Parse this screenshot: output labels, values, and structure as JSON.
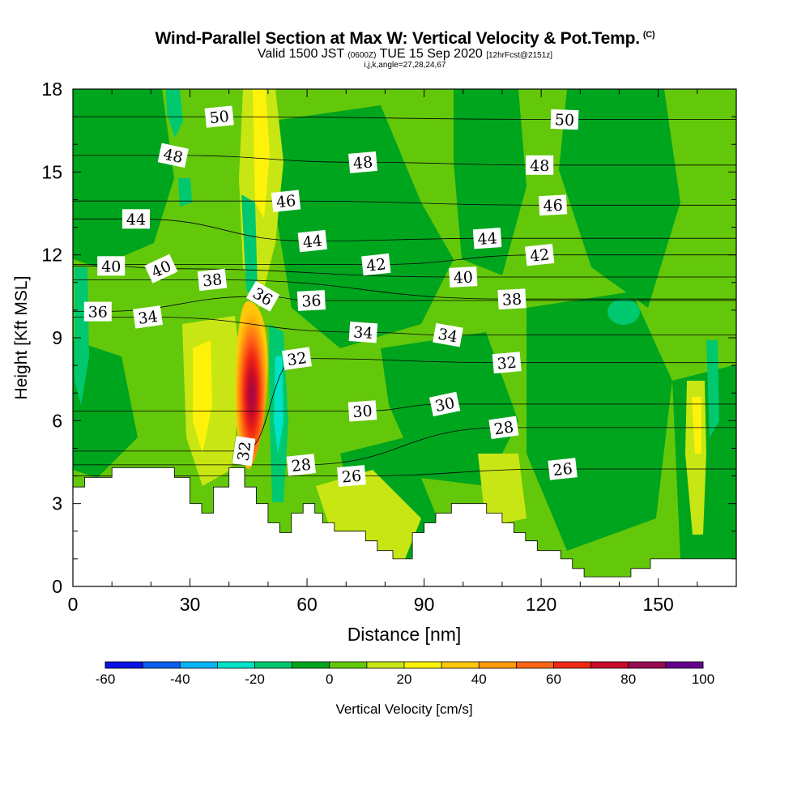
{
  "header": {
    "title": "Wind-Parallel Section at Max W: Vertical Velocity & Pot.Temp.",
    "title_unit": "(C)",
    "valid_prefix": "Valid 1500 JST",
    "valid_zulu": "(0600Z)",
    "valid_suffix": "TUE 15 Sep 2020",
    "forecast": "[12hrFcst@2151z]",
    "grid_info": "i,j,k,angle=27,28,24,67"
  },
  "chart_data": {
    "type": "heatmap",
    "xlabel": "Distance [nm]",
    "ylabel": "Height [Kft MSL]",
    "xlim": [
      0,
      170
    ],
    "ylim": [
      0,
      18
    ],
    "x_ticks": [
      0,
      30,
      60,
      90,
      120,
      150
    ],
    "y_ticks": [
      0,
      3,
      6,
      9,
      12,
      15,
      18
    ],
    "colorbar": {
      "label": "Vertical Velocity [cm/s]",
      "levels": [
        -60,
        -50,
        -40,
        -30,
        -20,
        -10,
        0,
        10,
        20,
        30,
        40,
        50,
        60,
        70,
        80,
        90,
        100
      ],
      "tick_labels": [
        "-60",
        "-40",
        "-20",
        "0",
        "20",
        "40",
        "60",
        "80",
        "100"
      ],
      "colors": [
        "#0a10e6",
        "#0a5ff0",
        "#0ab4f5",
        "#00e3c8",
        "#00c86e",
        "#00a51e",
        "#64c80a",
        "#c8e614",
        "#fff20a",
        "#ffc80a",
        "#ff9b0a",
        "#ff6414",
        "#f02814",
        "#c80a28",
        "#960a50",
        "#64008c"
      ]
    },
    "background_level": "0 to 10",
    "features": [
      {
        "name": "updraft core",
        "x": 45,
        "y_range": [
          4,
          9.5
        ],
        "max_level": "70 to 80"
      },
      {
        "name": "updraft plume",
        "x_range": [
          43,
          52
        ],
        "y_range": [
          9,
          18
        ],
        "level": "20 to 30"
      },
      {
        "name": "downdraft band",
        "x_range": [
          49,
          53
        ],
        "y_range": [
          3,
          9
        ],
        "level": "-20 to -10"
      },
      {
        "name": "updraft",
        "x_range": [
          32,
          40
        ],
        "y_range": [
          3,
          9
        ],
        "level": "20 to 30"
      },
      {
        "name": "updraft",
        "x": 161,
        "y_range": [
          2,
          8
        ],
        "level": "20 to 30"
      }
    ],
    "terrain": {
      "description": "stepped terrain mask (white)",
      "x": [
        0,
        3,
        3,
        10,
        10,
        26,
        26,
        30,
        30,
        33,
        33,
        36,
        36,
        40,
        40,
        44,
        44,
        47,
        47,
        50,
        50,
        53,
        53,
        56,
        56,
        59,
        59,
        62,
        62,
        64,
        64,
        67,
        67,
        75,
        75,
        78,
        78,
        82,
        82,
        87,
        87,
        90,
        90,
        93,
        93,
        97,
        97,
        106,
        106,
        110,
        110,
        113,
        113,
        116,
        116,
        119,
        119,
        125,
        125,
        128,
        128,
        131,
        131,
        143,
        143,
        148,
        148,
        170
      ],
      "kft": [
        3.6,
        3.6,
        3.95,
        3.95,
        4.3,
        4.3,
        3.95,
        3.95,
        3.0,
        3.0,
        2.65,
        2.65,
        3.6,
        3.6,
        4.3,
        4.3,
        3.6,
        3.6,
        3.0,
        3.0,
        2.3,
        2.3,
        1.95,
        1.95,
        2.65,
        2.65,
        3.0,
        3.0,
        2.65,
        2.65,
        2.3,
        2.3,
        2.0,
        2.0,
        1.65,
        1.65,
        1.3,
        1.3,
        1.0,
        1.0,
        1.95,
        1.95,
        2.3,
        2.3,
        2.65,
        2.65,
        3.0,
        3.0,
        2.65,
        2.65,
        2.3,
        2.3,
        1.95,
        1.95,
        1.65,
        1.65,
        1.3,
        1.3,
        1.0,
        1.0,
        0.65,
        0.65,
        0.35,
        0.35,
        0.65,
        0.65,
        1.0,
        1.0
      ]
    },
    "contour_labels": [
      {
        "text": "50",
        "x": 37.5,
        "y": 17.0,
        "angle": -6
      },
      {
        "text": "50",
        "x": 126,
        "y": 16.9,
        "angle": 2
      },
      {
        "text": "48",
        "x": 25.7,
        "y": 15.6,
        "angle": 12
      },
      {
        "text": "48",
        "x": 74.3,
        "y": 15.35,
        "angle": -5
      },
      {
        "text": "48",
        "x": 119.6,
        "y": 15.25,
        "angle": 0
      },
      {
        "text": "46",
        "x": 54.6,
        "y": 13.95,
        "angle": -6
      },
      {
        "text": "46",
        "x": 123,
        "y": 13.8,
        "angle": -3
      },
      {
        "text": "44",
        "x": 16.2,
        "y": 13.3,
        "angle": 0
      },
      {
        "text": "44",
        "x": 61.4,
        "y": 12.5,
        "angle": -6
      },
      {
        "text": "44",
        "x": 106.2,
        "y": 12.6,
        "angle": -4
      },
      {
        "text": "42",
        "x": 77.7,
        "y": 11.65,
        "angle": -6
      },
      {
        "text": "42",
        "x": 119.6,
        "y": 12.0,
        "angle": -6
      },
      {
        "text": "40",
        "x": 9.8,
        "y": 11.6,
        "angle": 0
      },
      {
        "text": "40",
        "x": 22.6,
        "y": 11.5,
        "angle": -25
      },
      {
        "text": "40",
        "x": 100,
        "y": 11.2,
        "angle": -3
      },
      {
        "text": "38",
        "x": 35.7,
        "y": 11.1,
        "angle": -6
      },
      {
        "text": "38",
        "x": 112.5,
        "y": 10.4,
        "angle": -3
      },
      {
        "text": "36",
        "x": 6.4,
        "y": 9.95,
        "angle": 0
      },
      {
        "text": "36",
        "x": 48.7,
        "y": 10.5,
        "angle": 30
      },
      {
        "text": "36",
        "x": 61.1,
        "y": 10.35,
        "angle": -3
      },
      {
        "text": "34",
        "x": 19.2,
        "y": 9.75,
        "angle": -8
      },
      {
        "text": "34",
        "x": 74.4,
        "y": 9.2,
        "angle": 4
      },
      {
        "text": "34",
        "x": 96.1,
        "y": 9.1,
        "angle": 10
      },
      {
        "text": "32",
        "x": 57.4,
        "y": 8.25,
        "angle": -8
      },
      {
        "text": "32",
        "x": 111.2,
        "y": 8.1,
        "angle": -5
      },
      {
        "text": "32",
        "x": 43.8,
        "y": 4.9,
        "angle": -82
      },
      {
        "text": "30",
        "x": 74.2,
        "y": 6.35,
        "angle": -4
      },
      {
        "text": "30",
        "x": 95.3,
        "y": 6.6,
        "angle": -12
      },
      {
        "text": "28",
        "x": 58.5,
        "y": 4.4,
        "angle": -6
      },
      {
        "text": "28",
        "x": 110.4,
        "y": 5.75,
        "angle": -8
      },
      {
        "text": "26",
        "x": 71.4,
        "y": 4.0,
        "angle": -5
      },
      {
        "text": "26",
        "x": 125.5,
        "y": 4.25,
        "angle": -6
      }
    ]
  }
}
